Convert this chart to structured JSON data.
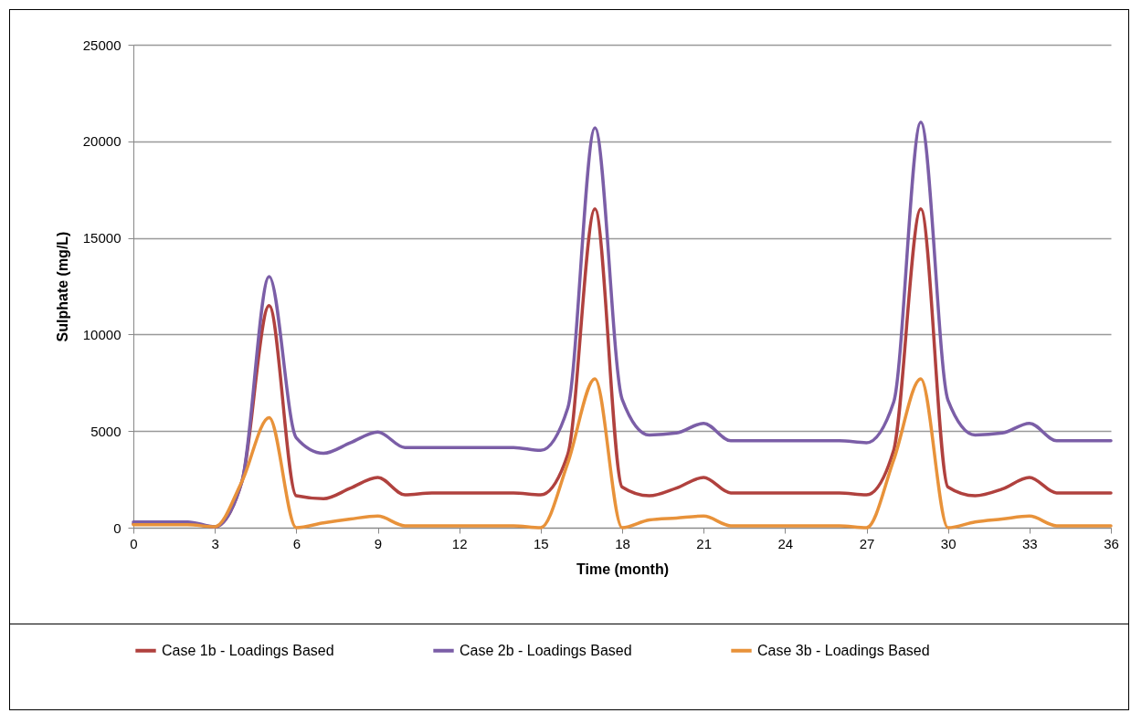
{
  "chart_data": {
    "type": "line",
    "xlabel": "Time (month)",
    "ylabel": "Sulphate (mg/L)",
    "x": [
      0,
      1,
      2,
      3,
      4,
      5,
      6,
      7,
      8,
      9,
      10,
      11,
      12,
      13,
      14,
      15,
      16,
      17,
      18,
      19,
      20,
      21,
      22,
      23,
      24,
      25,
      26,
      27,
      28,
      29,
      30,
      31,
      32,
      33,
      34,
      35,
      36
    ],
    "series": [
      {
        "name": "Case 1b - Loadings Based",
        "color": "#b0413e",
        "values": [
          200,
          200,
          200,
          50,
          2400,
          11500,
          1650,
          1500,
          2050,
          2600,
          1700,
          1800,
          1800,
          1800,
          1800,
          1700,
          3800,
          16500,
          2100,
          1650,
          2050,
          2600,
          1800,
          1800,
          1800,
          1800,
          1800,
          1700,
          4000,
          16500,
          2100,
          1650,
          2000,
          2600,
          1800,
          1800,
          1800
        ]
      },
      {
        "name": "Case 2b - Loadings Based",
        "color": "#7b5ea7",
        "values": [
          300,
          300,
          300,
          50,
          2400,
          13000,
          4650,
          3850,
          4400,
          4950,
          4150,
          4150,
          4150,
          4150,
          4150,
          4000,
          6200,
          20700,
          6650,
          4800,
          4900,
          5400,
          4500,
          4500,
          4500,
          4500,
          4500,
          4400,
          6500,
          21000,
          6600,
          4800,
          4900,
          5400,
          4500,
          4500,
          4500
        ]
      },
      {
        "name": "Case 3b - Loadings Based",
        "color": "#e8923a",
        "values": [
          150,
          150,
          150,
          50,
          2400,
          5700,
          0,
          250,
          450,
          600,
          100,
          100,
          100,
          100,
          100,
          0,
          3350,
          7700,
          0,
          400,
          500,
          600,
          100,
          100,
          100,
          100,
          100,
          0,
          3500,
          7700,
          0,
          300,
          450,
          600,
          100,
          100,
          100
        ]
      }
    ],
    "xlim": [
      0,
      36
    ],
    "xticks": [
      0,
      3,
      6,
      9,
      12,
      15,
      18,
      21,
      24,
      27,
      30,
      33,
      36
    ],
    "ylim": [
      0,
      25000
    ],
    "yticks": [
      0,
      5000,
      10000,
      15000,
      20000,
      25000
    ],
    "grid": "y",
    "legend": "bottom"
  }
}
